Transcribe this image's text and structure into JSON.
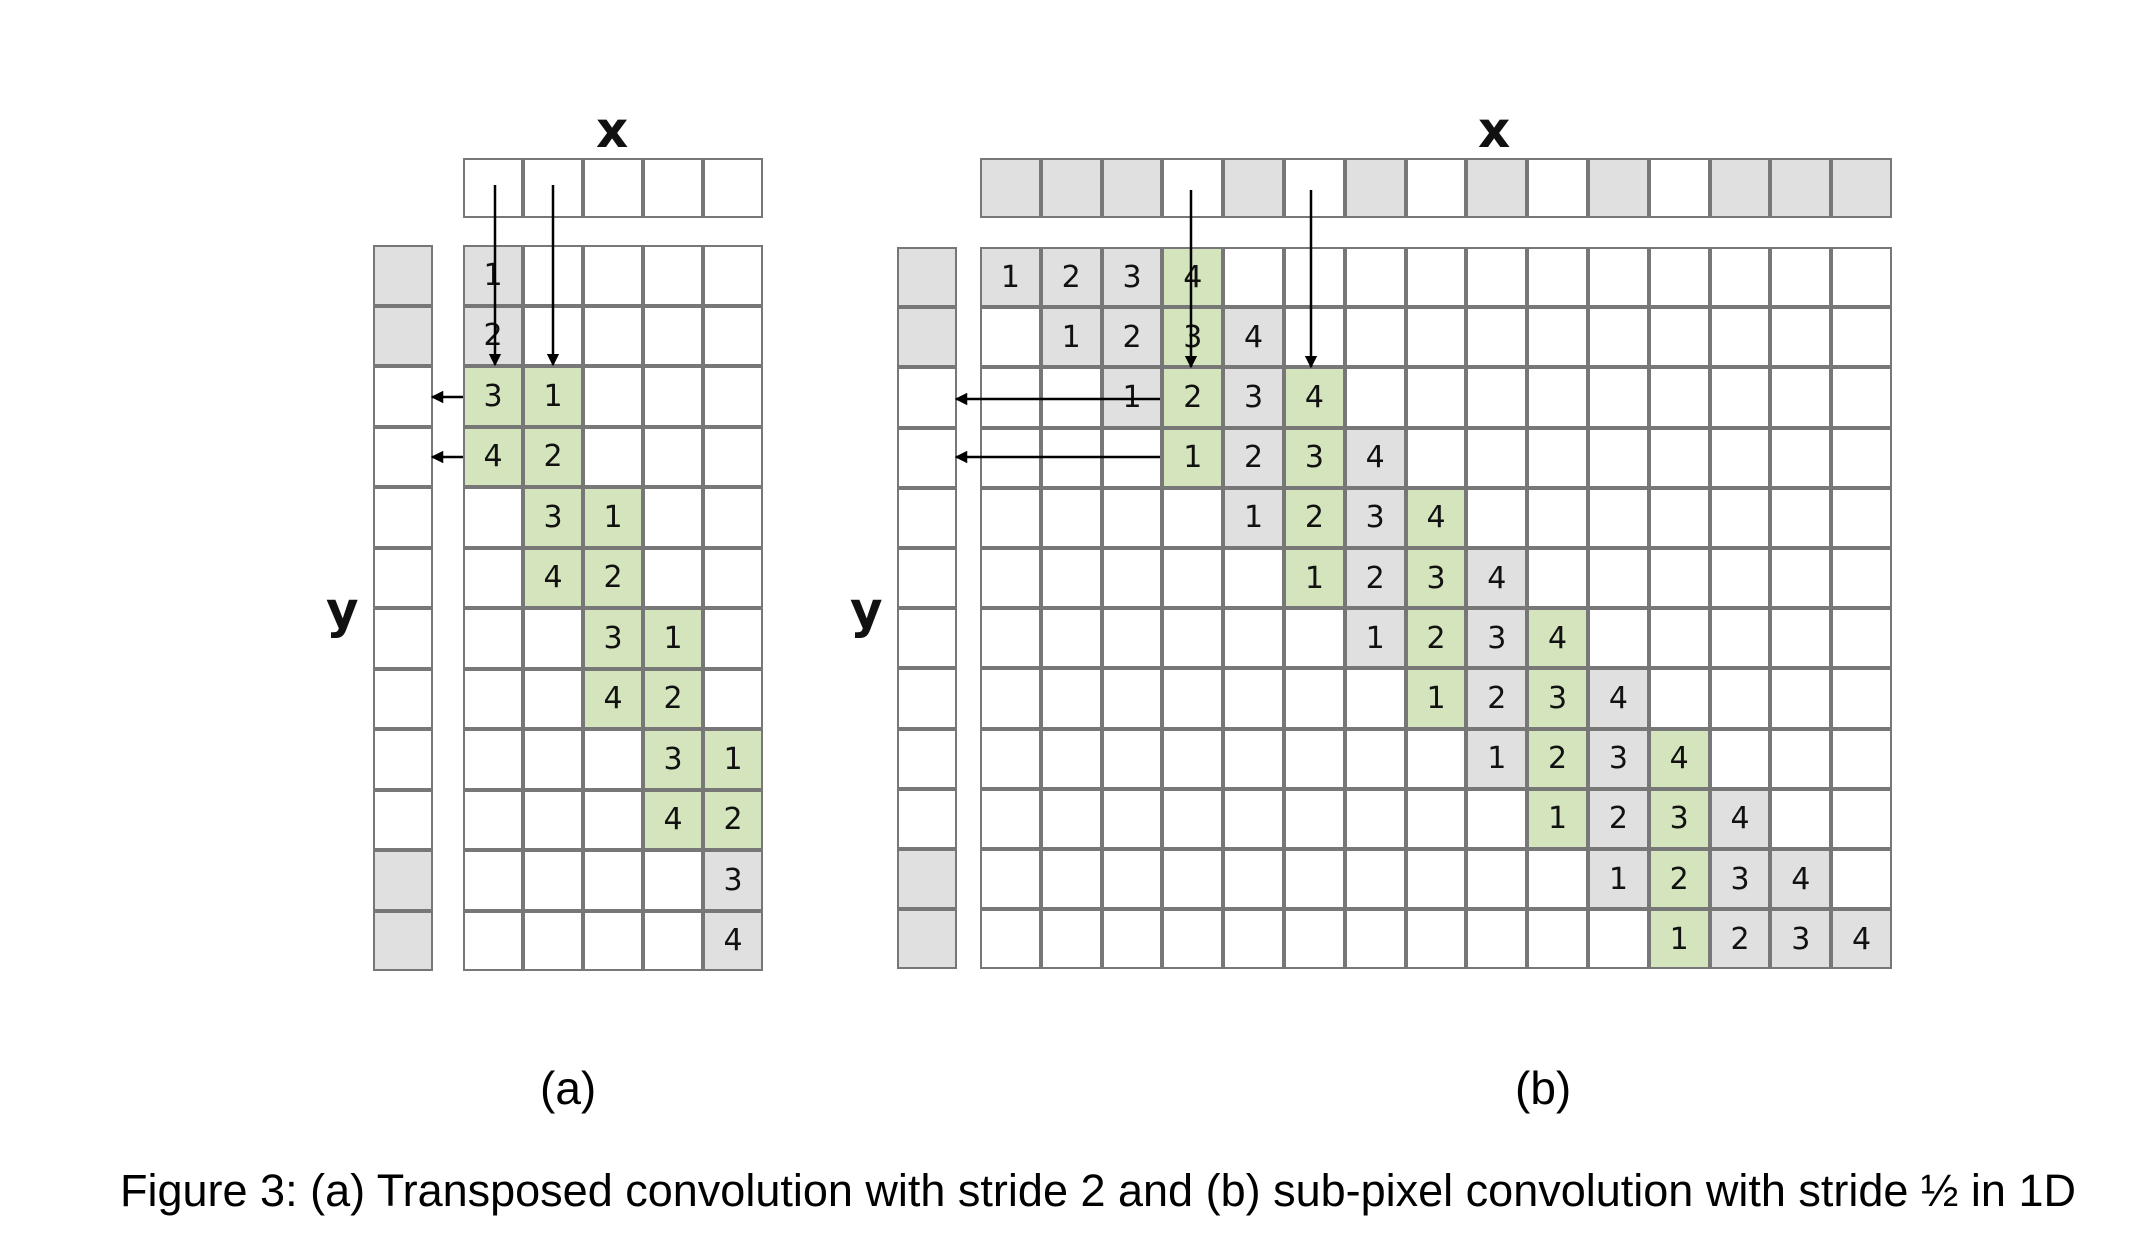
{
  "colors": {
    "green": "#d4e4bc",
    "gray": "#e0e0e0",
    "white": "#ffffff",
    "border": "#777777"
  },
  "panel_a": {
    "label": "(a)",
    "x_label": "x",
    "y_label": "y",
    "input_cols": 5,
    "x_vector": [
      "white",
      "white",
      "white",
      "white",
      "white"
    ],
    "y_vector": [
      "gray",
      "gray",
      "white",
      "white",
      "white",
      "white",
      "white",
      "white",
      "white",
      "white",
      "gray",
      "gray"
    ],
    "grid_rows": 12,
    "cells": [
      {
        "r": 0,
        "c": 0,
        "t": "1",
        "f": "gray"
      },
      {
        "r": 1,
        "c": 0,
        "t": "2",
        "f": "gray"
      },
      {
        "r": 2,
        "c": 0,
        "t": "3",
        "f": "green"
      },
      {
        "r": 2,
        "c": 1,
        "t": "1",
        "f": "green"
      },
      {
        "r": 3,
        "c": 0,
        "t": "4",
        "f": "green"
      },
      {
        "r": 3,
        "c": 1,
        "t": "2",
        "f": "green"
      },
      {
        "r": 4,
        "c": 1,
        "t": "3",
        "f": "green"
      },
      {
        "r": 4,
        "c": 2,
        "t": "1",
        "f": "green"
      },
      {
        "r": 5,
        "c": 1,
        "t": "4",
        "f": "green"
      },
      {
        "r": 5,
        "c": 2,
        "t": "2",
        "f": "green"
      },
      {
        "r": 6,
        "c": 2,
        "t": "3",
        "f": "green"
      },
      {
        "r": 6,
        "c": 3,
        "t": "1",
        "f": "green"
      },
      {
        "r": 7,
        "c": 2,
        "t": "4",
        "f": "green"
      },
      {
        "r": 7,
        "c": 3,
        "t": "2",
        "f": "green"
      },
      {
        "r": 8,
        "c": 3,
        "t": "3",
        "f": "green"
      },
      {
        "r": 8,
        "c": 4,
        "t": "1",
        "f": "green"
      },
      {
        "r": 9,
        "c": 3,
        "t": "4",
        "f": "green"
      },
      {
        "r": 9,
        "c": 4,
        "t": "2",
        "f": "green"
      },
      {
        "r": 10,
        "c": 4,
        "t": "3",
        "f": "gray"
      },
      {
        "r": 11,
        "c": 4,
        "t": "4",
        "f": "gray"
      }
    ]
  },
  "panel_b": {
    "label": "(b)",
    "x_label": "x",
    "y_label": "y",
    "x_vector": [
      "gray",
      "gray",
      "gray",
      "white",
      "gray",
      "white",
      "gray",
      "white",
      "gray",
      "white",
      "gray",
      "white",
      "gray",
      "gray",
      "gray"
    ],
    "y_vector": [
      "gray",
      "gray",
      "white",
      "white",
      "white",
      "white",
      "white",
      "white",
      "white",
      "white",
      "gray",
      "gray"
    ],
    "grid_rows": 12,
    "grid_cols": 15,
    "cells": [
      {
        "r": 0,
        "c": 0,
        "t": "1",
        "f": "gray"
      },
      {
        "r": 0,
        "c": 1,
        "t": "2",
        "f": "gray"
      },
      {
        "r": 0,
        "c": 2,
        "t": "3",
        "f": "gray"
      },
      {
        "r": 0,
        "c": 3,
        "t": "4",
        "f": "green"
      },
      {
        "r": 1,
        "c": 1,
        "t": "1",
        "f": "gray"
      },
      {
        "r": 1,
        "c": 2,
        "t": "2",
        "f": "gray"
      },
      {
        "r": 1,
        "c": 3,
        "t": "3",
        "f": "green"
      },
      {
        "r": 1,
        "c": 4,
        "t": "4",
        "f": "gray"
      },
      {
        "r": 2,
        "c": 2,
        "t": "1",
        "f": "gray"
      },
      {
        "r": 2,
        "c": 3,
        "t": "2",
        "f": "green"
      },
      {
        "r": 2,
        "c": 4,
        "t": "3",
        "f": "gray"
      },
      {
        "r": 2,
        "c": 5,
        "t": "4",
        "f": "green"
      },
      {
        "r": 3,
        "c": 3,
        "t": "1",
        "f": "green"
      },
      {
        "r": 3,
        "c": 4,
        "t": "2",
        "f": "gray"
      },
      {
        "r": 3,
        "c": 5,
        "t": "3",
        "f": "green"
      },
      {
        "r": 3,
        "c": 6,
        "t": "4",
        "f": "gray"
      },
      {
        "r": 4,
        "c": 4,
        "t": "1",
        "f": "gray"
      },
      {
        "r": 4,
        "c": 5,
        "t": "2",
        "f": "green"
      },
      {
        "r": 4,
        "c": 6,
        "t": "3",
        "f": "gray"
      },
      {
        "r": 4,
        "c": 7,
        "t": "4",
        "f": "green"
      },
      {
        "r": 5,
        "c": 5,
        "t": "1",
        "f": "green"
      },
      {
        "r": 5,
        "c": 6,
        "t": "2",
        "f": "gray"
      },
      {
        "r": 5,
        "c": 7,
        "t": "3",
        "f": "green"
      },
      {
        "r": 5,
        "c": 8,
        "t": "4",
        "f": "gray"
      },
      {
        "r": 6,
        "c": 6,
        "t": "1",
        "f": "gray"
      },
      {
        "r": 6,
        "c": 7,
        "t": "2",
        "f": "green"
      },
      {
        "r": 6,
        "c": 8,
        "t": "3",
        "f": "gray"
      },
      {
        "r": 6,
        "c": 9,
        "t": "4",
        "f": "green"
      },
      {
        "r": 7,
        "c": 7,
        "t": "1",
        "f": "green"
      },
      {
        "r": 7,
        "c": 8,
        "t": "2",
        "f": "gray"
      },
      {
        "r": 7,
        "c": 9,
        "t": "3",
        "f": "green"
      },
      {
        "r": 7,
        "c": 10,
        "t": "4",
        "f": "gray"
      },
      {
        "r": 8,
        "c": 8,
        "t": "1",
        "f": "gray"
      },
      {
        "r": 8,
        "c": 9,
        "t": "2",
        "f": "green"
      },
      {
        "r": 8,
        "c": 10,
        "t": "3",
        "f": "gray"
      },
      {
        "r": 8,
        "c": 11,
        "t": "4",
        "f": "green"
      },
      {
        "r": 9,
        "c": 9,
        "t": "1",
        "f": "green"
      },
      {
        "r": 9,
        "c": 10,
        "t": "2",
        "f": "gray"
      },
      {
        "r": 9,
        "c": 11,
        "t": "3",
        "f": "green"
      },
      {
        "r": 9,
        "c": 12,
        "t": "4",
        "f": "gray"
      },
      {
        "r": 10,
        "c": 10,
        "t": "1",
        "f": "gray"
      },
      {
        "r": 10,
        "c": 11,
        "t": "2",
        "f": "green"
      },
      {
        "r": 10,
        "c": 12,
        "t": "3",
        "f": "gray"
      },
      {
        "r": 10,
        "c": 13,
        "t": "4",
        "f": "gray"
      },
      {
        "r": 11,
        "c": 11,
        "t": "1",
        "f": "green"
      },
      {
        "r": 11,
        "c": 12,
        "t": "2",
        "f": "gray"
      },
      {
        "r": 11,
        "c": 13,
        "t": "3",
        "f": "gray"
      },
      {
        "r": 11,
        "c": 14,
        "t": "4",
        "f": "gray"
      }
    ]
  },
  "caption": "Figure 3: (a) Transposed convolution with stride 2 and (b) sub-pixel convolution with stride ½  in 1D"
}
